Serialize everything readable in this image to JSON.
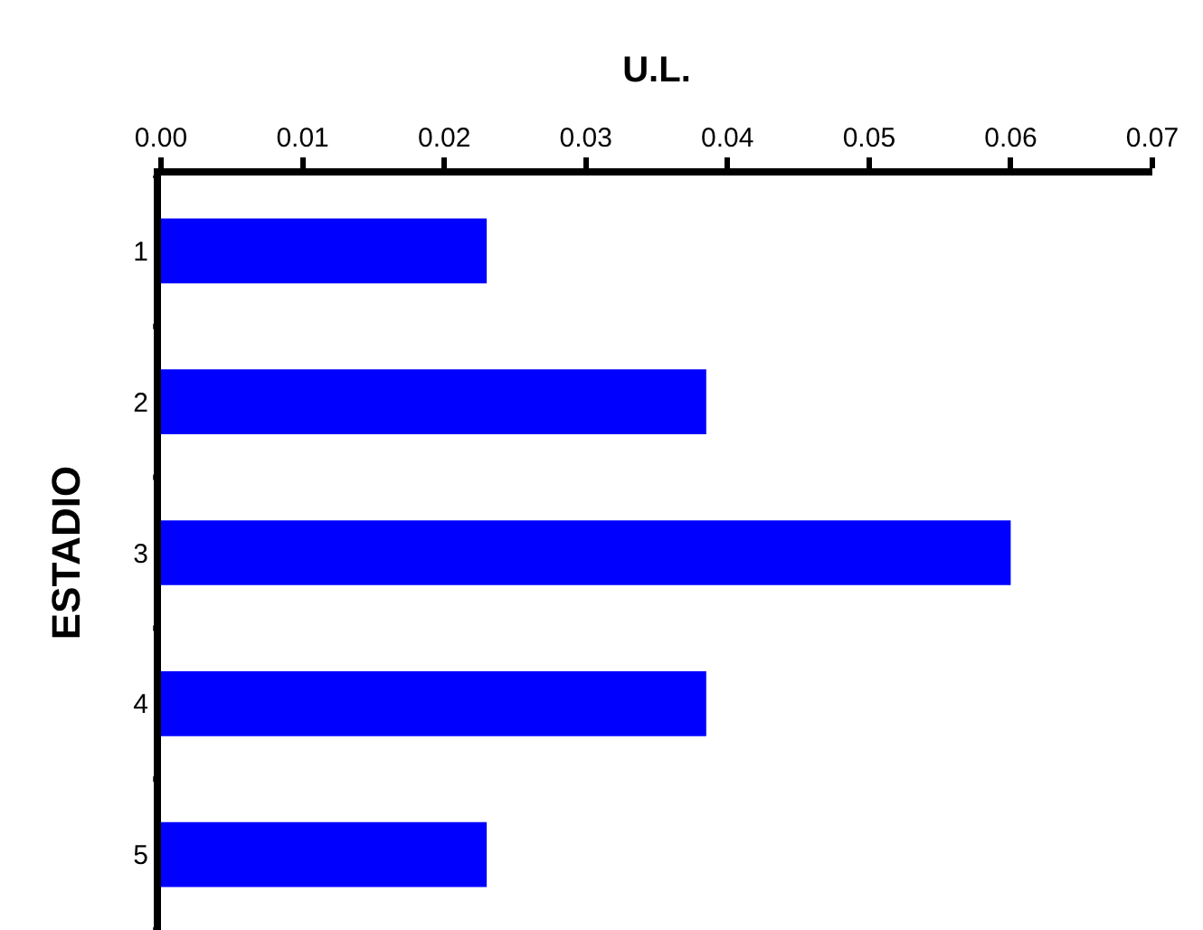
{
  "chart_data": {
    "type": "bar",
    "orientation": "horizontal",
    "xlabel": "U.L.",
    "ylabel": "ESTADIO",
    "categories": [
      "1",
      "2",
      "3",
      "4",
      "5"
    ],
    "values": [
      0.023,
      0.0385,
      0.06,
      0.0385,
      0.023
    ],
    "color": "#0000ff",
    "xlim": [
      0,
      0.07
    ],
    "xticks": [
      {
        "value": 0,
        "label": "0.00"
      },
      {
        "value": 0.01,
        "label": "0.01"
      },
      {
        "value": 0.02,
        "label": "0.02"
      },
      {
        "value": 0.03,
        "label": "0.03"
      },
      {
        "value": 0.04,
        "label": "0.04"
      },
      {
        "value": 0.05,
        "label": "0.05"
      },
      {
        "value": 0.06,
        "label": "0.06"
      },
      {
        "value": 0.07,
        "label": "0.07"
      }
    ],
    "grid": false
  }
}
